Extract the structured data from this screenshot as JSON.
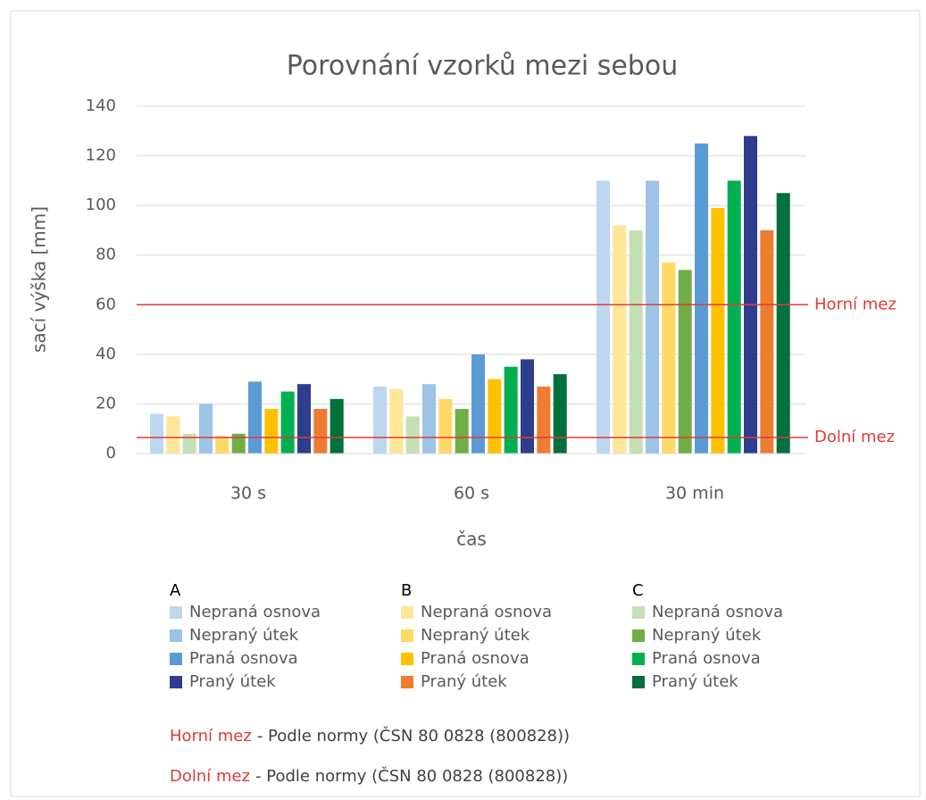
{
  "chart_data": {
    "type": "bar",
    "title": "Porovnání vzorků mezi sebou",
    "y_label": "sací výška [mm]",
    "x_label": "čas",
    "categories": [
      "30 s",
      "60 s",
      "30 min"
    ],
    "ylim": [
      0,
      140
    ],
    "yticks": [
      0,
      20,
      40,
      60,
      80,
      100,
      120,
      140
    ],
    "grid": true,
    "groups": [
      {
        "title": "A",
        "series": [
          {
            "name": "Nepraná osnova",
            "color": "#bdd7ee",
            "values": [
              16,
              27,
              110
            ]
          },
          {
            "name": "Nepraný útek",
            "color": "#9dc3e6",
            "values": [
              20,
              28,
              110
            ]
          },
          {
            "name": "Praná osnova",
            "color": "#5b9bd5",
            "values": [
              29,
              40,
              125
            ]
          },
          {
            "name": "Praný útek",
            "color": "#2f3d8f",
            "values": [
              28,
              38,
              128
            ]
          }
        ]
      },
      {
        "title": "B",
        "series": [
          {
            "name": "Nepraná osnova",
            "color": "#ffe699",
            "values": [
              15,
              26,
              92
            ]
          },
          {
            "name": "Nepraný útek",
            "color": "#ffd966",
            "values": [
              7,
              22,
              77
            ]
          },
          {
            "name": "Praná osnova",
            "color": "#ffc000",
            "values": [
              18,
              30,
              99
            ]
          },
          {
            "name": "Praný útek",
            "color": "#ed7d31",
            "values": [
              18,
              27,
              90
            ]
          }
        ]
      },
      {
        "title": "C",
        "series": [
          {
            "name": "Nepraná osnova",
            "color": "#c5e0b4",
            "values": [
              8,
              15,
              90
            ]
          },
          {
            "name": "Nepraný útek",
            "color": "#70ad47",
            "values": [
              8,
              18,
              74
            ]
          },
          {
            "name": "Praná osnova",
            "color": "#00b050",
            "values": [
              25,
              35,
              110
            ]
          },
          {
            "name": "Praný útek",
            "color": "#00703c",
            "values": [
              22,
              32,
              105
            ]
          }
        ]
      }
    ],
    "reference_lines": [
      {
        "label": "Horní mez",
        "value": 60,
        "color": "#e03a3a",
        "note": "- Podle normy (ČSN 80 0828 (800828))"
      },
      {
        "label": "Dolní mez",
        "value": 6.5,
        "color": "#e03a3a",
        "note": "- Podle normy (ČSN 80 0828 (800828))"
      }
    ]
  }
}
